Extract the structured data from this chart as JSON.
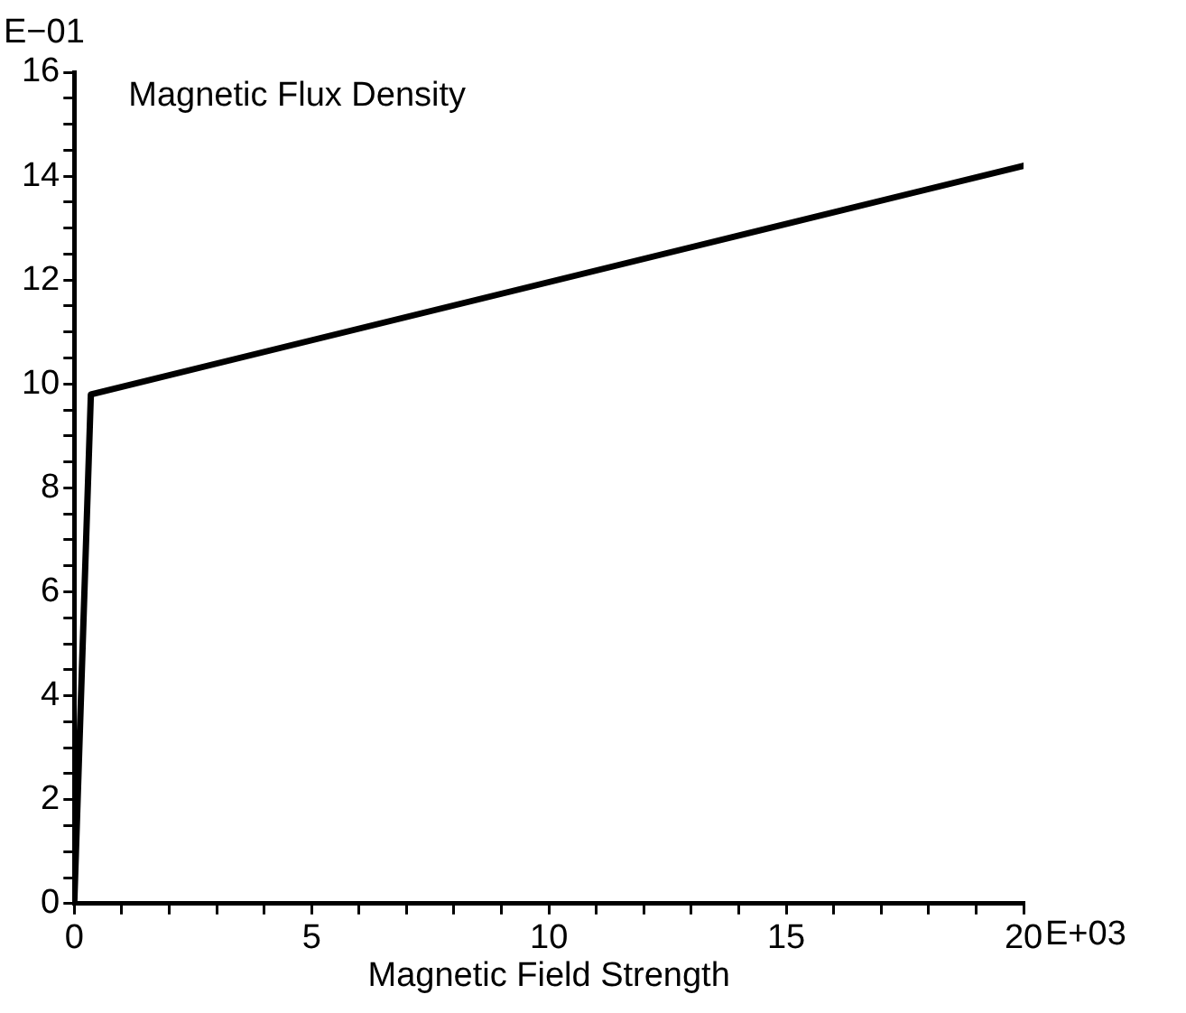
{
  "chart_data": {
    "type": "line",
    "xlabel": "Magnetic Field Strength",
    "ylabel": "Magnetic Flux Density",
    "annotations": [
      "E−01",
      "E+03"
    ],
    "series": [
      {
        "color": "#000000",
        "x": [
          0,
          0.35,
          20
        ],
        "values": [
          0,
          9.8,
          14.2
        ]
      }
    ],
    "xlim": [
      0,
      20
    ],
    "ylim": [
      0,
      16
    ],
    "xticks": [
      0,
      {
        "value": 1,
        "label": null
      },
      {
        "value": 2,
        "label": null
      },
      {
        "value": 3,
        "label": null
      },
      {
        "value": 4,
        "label": null
      },
      5,
      {
        "value": 6,
        "label": null
      },
      {
        "value": 7,
        "label": null
      },
      {
        "value": 8,
        "label": null
      },
      {
        "value": 9,
        "label": null
      },
      10,
      {
        "value": 11,
        "label": null
      },
      {
        "value": 12,
        "label": null
      },
      {
        "value": 13,
        "label": null
      },
      {
        "value": 14,
        "label": null
      },
      15,
      {
        "value": 16,
        "label": null
      },
      {
        "value": 17,
        "label": null
      },
      {
        "value": 18,
        "label": null
      },
      {
        "value": 19,
        "label": null
      },
      20
    ],
    "yticks": [
      0,
      {
        "value": 0.5,
        "label": null
      },
      {
        "value": 1,
        "label": null
      },
      {
        "value": 1.5,
        "label": null
      },
      2,
      {
        "value": 2.5,
        "label": null
      },
      {
        "value": 3,
        "label": null
      },
      {
        "value": 3.5,
        "label": null
      },
      4,
      {
        "value": 4.5,
        "label": null
      },
      {
        "value": 5,
        "label": null
      },
      {
        "value": 5.5,
        "label": null
      },
      6,
      {
        "value": 6.5,
        "label": null
      },
      {
        "value": 7,
        "label": null
      },
      {
        "value": 7.5,
        "label": null
      },
      8,
      {
        "value": 8.5,
        "label": null
      },
      {
        "value": 9,
        "label": null
      },
      {
        "value": 9.5,
        "label": null
      },
      10,
      {
        "value": 10.5,
        "label": null
      },
      {
        "value": 11,
        "label": null
      },
      {
        "value": 11.5,
        "label": null
      },
      12,
      {
        "value": 12.5,
        "label": null
      },
      {
        "value": 13,
        "label": null
      },
      {
        "value": 13.5,
        "label": null
      },
      14,
      {
        "value": 14.5,
        "label": null
      },
      {
        "value": 15,
        "label": null
      },
      {
        "value": 15.5,
        "label": null
      },
      16
    ],
    "grid": false,
    "legend": false,
    "marker": "none",
    "line_style": "solid"
  }
}
